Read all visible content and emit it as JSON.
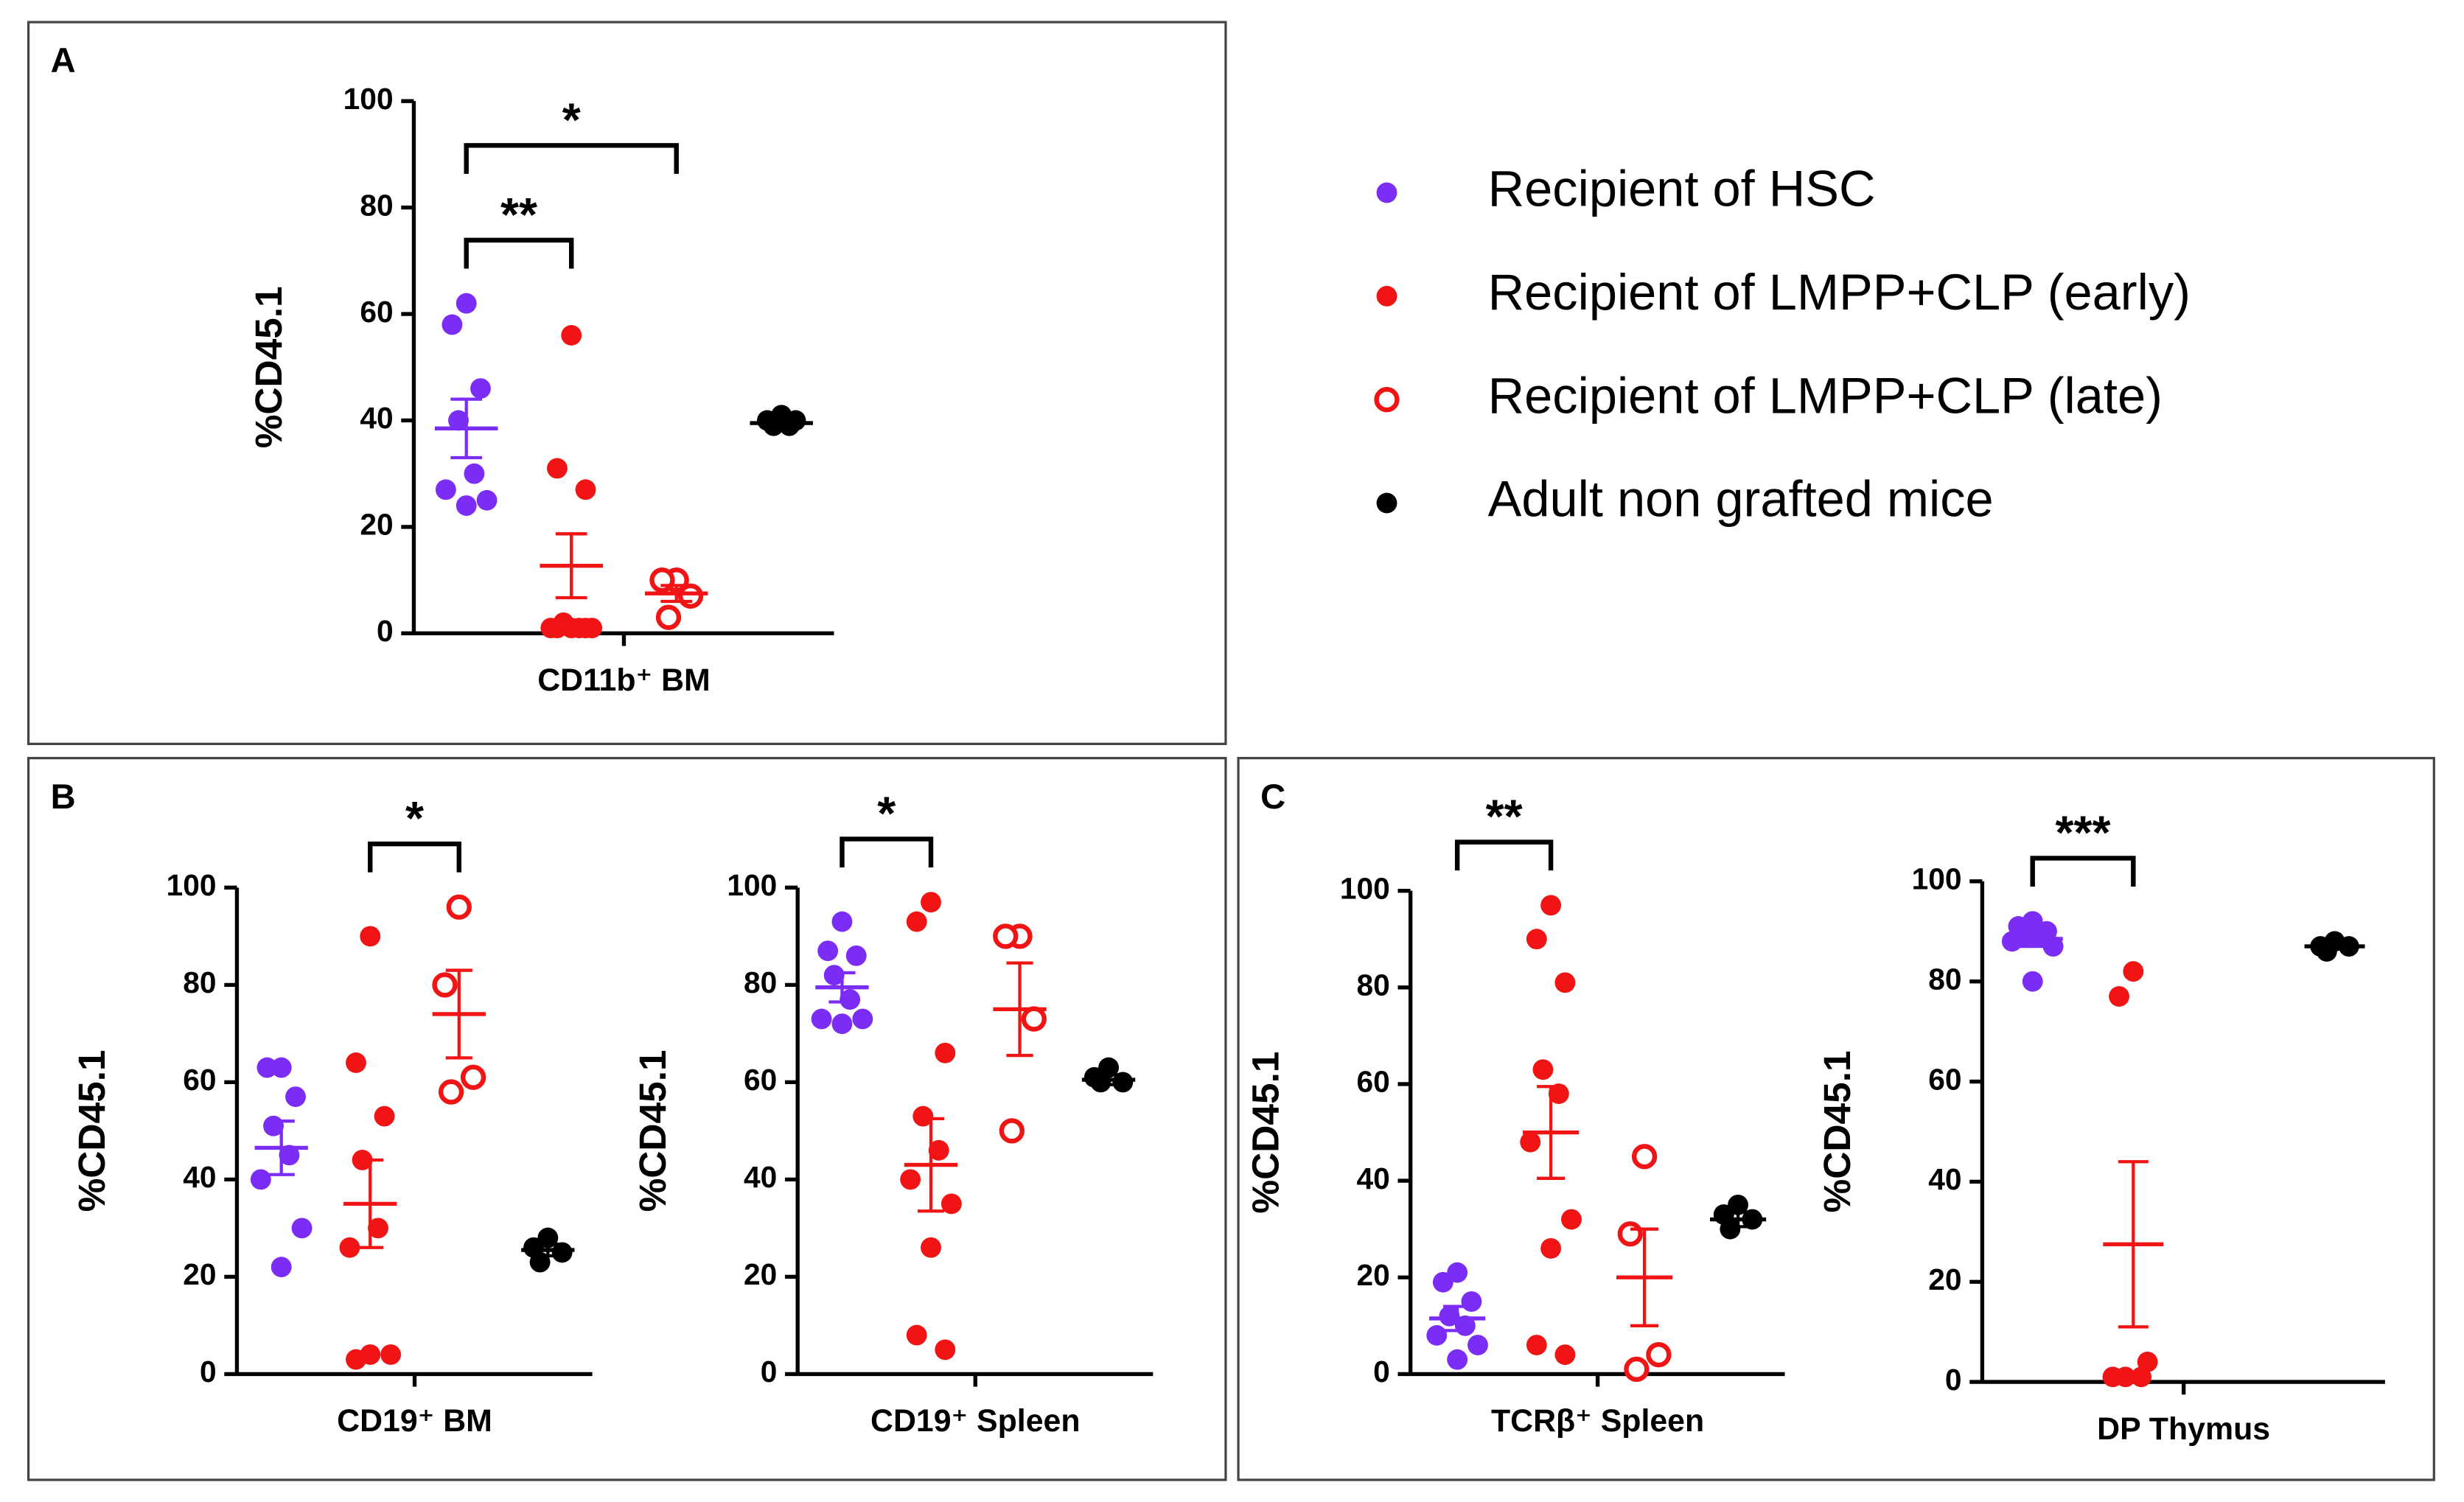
{
  "legend": [
    {
      "name": "Recipient of HSC",
      "color": "#7b2cf5",
      "filled": true
    },
    {
      "name": "Recipient of LMPP+CLP (early)",
      "color": "#f01414",
      "filled": true
    },
    {
      "name": "Recipient of LMPP+CLP (late)",
      "color": "#f01414",
      "filled": false
    },
    {
      "name": "Adult non grafted mice",
      "color": "#000000",
      "filled": true
    }
  ],
  "chart_data": [
    {
      "type": "dot",
      "panel_label": "A",
      "xlabel": "CD11b⁺ BM",
      "ylabel": "%CD45.1",
      "ylim": [
        0,
        100
      ],
      "yticks": [
        0,
        20,
        40,
        60,
        80,
        100
      ],
      "series": [
        {
          "color": "#7b2cf5",
          "filled": true,
          "values": [
            62,
            58,
            46,
            40,
            30,
            27,
            25,
            24
          ],
          "mean": 38.5,
          "sem": 5.5
        },
        {
          "color": "#f01414",
          "filled": true,
          "values": [
            56,
            31,
            27,
            2,
            1,
            1,
            1,
            1,
            1,
            1
          ],
          "mean": 12.7,
          "sem": 6
        },
        {
          "color": "#f01414",
          "filled": false,
          "values": [
            10,
            10,
            7,
            3
          ],
          "mean": 7.5,
          "sem": 1.5
        },
        {
          "color": "#000000",
          "filled": true,
          "values": [
            41,
            40,
            40,
            39,
            39
          ],
          "mean": 39.5,
          "sem": 0.5
        }
      ],
      "annotations": [
        {
          "text": "**",
          "from": 0,
          "to": 1
        },
        {
          "text": "*",
          "from": 0,
          "to": 2
        }
      ]
    },
    {
      "type": "dot",
      "panel_label": "B",
      "xlabel": "CD19⁺ BM",
      "ylabel": "%CD45.1",
      "ylim": [
        0,
        100
      ],
      "yticks": [
        0,
        20,
        40,
        60,
        80,
        100
      ],
      "series": [
        {
          "color": "#7b2cf5",
          "filled": true,
          "values": [
            63,
            63,
            57,
            51,
            45,
            40,
            30,
            22
          ],
          "mean": 46.5,
          "sem": 5.5
        },
        {
          "color": "#f01414",
          "filled": true,
          "values": [
            90,
            64,
            53,
            44,
            30,
            26,
            4,
            4,
            3
          ],
          "mean": 35,
          "sem": 9
        },
        {
          "color": "#f01414",
          "filled": false,
          "values": [
            96,
            80,
            61,
            58
          ],
          "mean": 74,
          "sem": 9
        },
        {
          "color": "#000000",
          "filled": true,
          "values": [
            28,
            26,
            25,
            23
          ],
          "mean": 25.5,
          "sem": 1.2
        }
      ],
      "annotations": [
        {
          "text": "*",
          "from": 1,
          "to": 2
        }
      ]
    },
    {
      "type": "dot",
      "xlabel": "CD19⁺ Spleen",
      "ylabel": "%CD45.1",
      "ylim": [
        0,
        100
      ],
      "yticks": [
        0,
        20,
        40,
        60,
        80,
        100
      ],
      "series": [
        {
          "color": "#7b2cf5",
          "filled": true,
          "values": [
            93,
            87,
            86,
            82,
            77,
            73,
            73,
            72
          ],
          "mean": 79.5,
          "sem": 3
        },
        {
          "color": "#f01414",
          "filled": true,
          "values": [
            97,
            93,
            66,
            53,
            46,
            40,
            35,
            26,
            8,
            5
          ],
          "mean": 43,
          "sem": 9.5
        },
        {
          "color": "#f01414",
          "filled": false,
          "values": [
            90,
            90,
            73,
            50
          ],
          "mean": 75,
          "sem": 9.5
        },
        {
          "color": "#000000",
          "filled": true,
          "values": [
            63,
            61,
            60,
            60
          ],
          "mean": 60.5,
          "sem": 1
        }
      ],
      "annotations": [
        {
          "text": "*",
          "from": 0,
          "to": 1
        }
      ]
    },
    {
      "type": "dot",
      "panel_label": "C",
      "xlabel": "TCRβ⁺ Spleen",
      "ylabel": "%CD45.1",
      "ylim": [
        0,
        100
      ],
      "yticks": [
        0,
        20,
        40,
        60,
        80,
        100
      ],
      "series": [
        {
          "color": "#7b2cf5",
          "filled": true,
          "values": [
            21,
            19,
            15,
            12,
            10,
            8,
            6,
            3
          ],
          "mean": 11.5,
          "sem": 2.5
        },
        {
          "color": "#f01414",
          "filled": true,
          "values": [
            97,
            90,
            81,
            63,
            58,
            48,
            32,
            26,
            6,
            4
          ],
          "mean": 50,
          "sem": 9.5
        },
        {
          "color": "#f01414",
          "filled": false,
          "values": [
            45,
            29,
            4,
            1
          ],
          "mean": 20,
          "sem": 10
        },
        {
          "color": "#000000",
          "filled": true,
          "values": [
            35,
            33,
            32,
            30
          ],
          "mean": 32,
          "sem": 1.5
        }
      ],
      "annotations": [
        {
          "text": "**",
          "from": 0,
          "to": 1
        }
      ]
    },
    {
      "type": "dot",
      "xlabel": "DP Thymus",
      "ylabel": "%CD45.1",
      "ylim": [
        0,
        100
      ],
      "yticks": [
        0,
        20,
        40,
        60,
        80,
        100
      ],
      "series": [
        {
          "color": "#7b2cf5",
          "filled": true,
          "values": [
            92,
            91,
            90,
            89,
            89,
            88,
            87,
            80
          ],
          "mean": 88.5,
          "sem": 1.5
        },
        {
          "color": "#f01414",
          "filled": true,
          "values": [
            82,
            77,
            4,
            1,
            1,
            1
          ],
          "mean": 27.5,
          "sem": 16.5
        },
        {
          "color": "#f01414",
          "filled": false,
          "values": [],
          "mean": null,
          "sem": null
        },
        {
          "color": "#000000",
          "filled": true,
          "values": [
            88,
            87,
            87,
            86
          ],
          "mean": 87,
          "sem": 0.5
        }
      ],
      "annotations": [
        {
          "text": "***",
          "from": 0,
          "to": 1
        }
      ]
    }
  ]
}
